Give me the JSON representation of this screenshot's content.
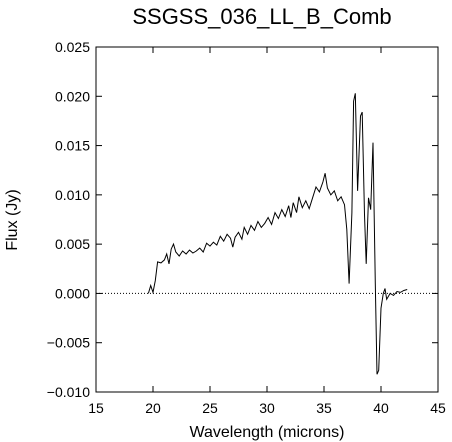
{
  "chart_data": {
    "type": "line",
    "title": "SSGSS_036_LL_B_Comb",
    "xlabel": "Wavelength (microns)",
    "ylabel": "Flux (Jy)",
    "xlim": [
      15,
      45
    ],
    "ylim": [
      -0.01,
      0.025
    ],
    "xticks": [
      15,
      20,
      25,
      30,
      35,
      40,
      45
    ],
    "xtick_labels": [
      "15",
      "20",
      "25",
      "30",
      "35",
      "40",
      "45"
    ],
    "yticks": [
      -0.01,
      -0.005,
      0.0,
      0.005,
      0.01,
      0.015,
      0.02,
      0.025
    ],
    "ytick_labels": [
      "−0.010",
      "−0.005",
      "0.000",
      "0.005",
      "0.010",
      "0.015",
      "0.020",
      "0.025"
    ],
    "zero_line": {
      "y": 0,
      "style": "dotted"
    },
    "grid": false,
    "series": [
      {
        "color": "#000000",
        "points": [
          [
            19.6,
            0.0
          ],
          [
            19.8,
            0.0008
          ],
          [
            20.0,
            0.0001
          ],
          [
            20.2,
            0.0013
          ],
          [
            20.4,
            0.0032
          ],
          [
            20.7,
            0.0031
          ],
          [
            21.0,
            0.0034
          ],
          [
            21.2,
            0.004
          ],
          [
            21.4,
            0.003
          ],
          [
            21.6,
            0.0045
          ],
          [
            21.8,
            0.005
          ],
          [
            22.0,
            0.0042
          ],
          [
            22.3,
            0.0038
          ],
          [
            22.6,
            0.0043
          ],
          [
            22.9,
            0.004
          ],
          [
            23.2,
            0.0044
          ],
          [
            23.5,
            0.0041
          ],
          [
            23.8,
            0.0043
          ],
          [
            24.1,
            0.0046
          ],
          [
            24.4,
            0.0042
          ],
          [
            24.7,
            0.0051
          ],
          [
            25.0,
            0.0048
          ],
          [
            25.3,
            0.0052
          ],
          [
            25.6,
            0.0049
          ],
          [
            25.9,
            0.0058
          ],
          [
            26.2,
            0.0053
          ],
          [
            26.5,
            0.006
          ],
          [
            26.8,
            0.0056
          ],
          [
            27.0,
            0.0047
          ],
          [
            27.2,
            0.0057
          ],
          [
            27.5,
            0.0062
          ],
          [
            27.8,
            0.0055
          ],
          [
            28.0,
            0.0067
          ],
          [
            28.3,
            0.006
          ],
          [
            28.6,
            0.0069
          ],
          [
            28.9,
            0.0064
          ],
          [
            29.2,
            0.0073
          ],
          [
            29.5,
            0.0067
          ],
          [
            29.8,
            0.0071
          ],
          [
            30.1,
            0.0077
          ],
          [
            30.4,
            0.007
          ],
          [
            30.7,
            0.0082
          ],
          [
            31.0,
            0.0076
          ],
          [
            31.3,
            0.0085
          ],
          [
            31.6,
            0.0078
          ],
          [
            31.9,
            0.0089
          ],
          [
            32.1,
            0.0077
          ],
          [
            32.3,
            0.0092
          ],
          [
            32.6,
            0.0082
          ],
          [
            32.8,
            0.0098
          ],
          [
            33.1,
            0.0087
          ],
          [
            33.4,
            0.0094
          ],
          [
            33.7,
            0.0086
          ],
          [
            34.0,
            0.0097
          ],
          [
            34.3,
            0.0108
          ],
          [
            34.6,
            0.0103
          ],
          [
            34.9,
            0.0113
          ],
          [
            35.1,
            0.0122
          ],
          [
            35.3,
            0.0107
          ],
          [
            35.6,
            0.01
          ],
          [
            35.9,
            0.0104
          ],
          [
            36.2,
            0.0094
          ],
          [
            36.5,
            0.0098
          ],
          [
            36.8,
            0.009
          ],
          [
            37.0,
            0.0065
          ],
          [
            37.2,
            0.001
          ],
          [
            37.45,
            0.0082
          ],
          [
            37.6,
            0.0195
          ],
          [
            37.75,
            0.0203
          ],
          [
            37.95,
            0.0104
          ],
          [
            38.2,
            0.018
          ],
          [
            38.35,
            0.0184
          ],
          [
            38.55,
            0.008
          ],
          [
            38.7,
            0.003
          ],
          [
            38.9,
            0.0097
          ],
          [
            39.1,
            0.0085
          ],
          [
            39.3,
            0.0153
          ],
          [
            39.5,
            0.001
          ],
          [
            39.65,
            -0.0082
          ],
          [
            39.8,
            -0.0078
          ],
          [
            40.0,
            -0.0015
          ],
          [
            40.2,
            0.0
          ],
          [
            40.35,
            0.0005
          ],
          [
            40.5,
            -0.0006
          ],
          [
            40.8,
            0.0
          ],
          [
            41.1,
            -0.0002
          ],
          [
            41.4,
            0.0002
          ],
          [
            41.7,
            0.0001
          ],
          [
            42.0,
            0.0003
          ],
          [
            42.3,
            0.0004
          ]
        ]
      }
    ]
  }
}
